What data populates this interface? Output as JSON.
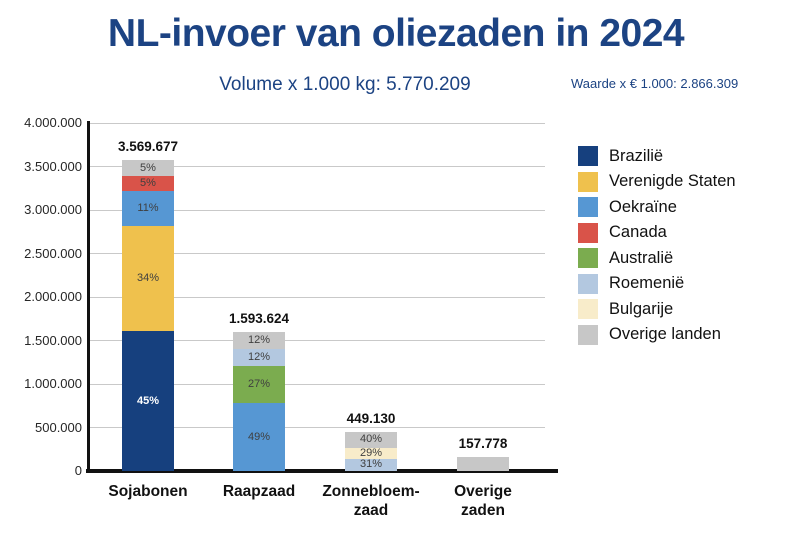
{
  "header": {
    "title": "NL-invoer van oliezaden in 2024",
    "subtitle": "Volume x 1.000 kg: 5.770.209",
    "note": "Waarde x € 1.000: 2.866.309"
  },
  "colors": {
    "title_blue": "#1C4383",
    "axis": "#111111",
    "gridline": "#C9C9C9",
    "pct_label": "#3F3F3F"
  },
  "chart_data": {
    "type": "bar",
    "stacked": true,
    "title": "NL-invoer van oliezaden in 2024",
    "subtitle": "Volume x 1.000 kg: 5.770.209",
    "note": "Waarde x € 1.000: 2.866.309",
    "xlabel": "",
    "ylabel": "",
    "grid": true,
    "legend_position": "right",
    "ylim": [
      0,
      4000000
    ],
    "ytick_step": 500000,
    "yticks_values": [
      0,
      500000,
      1000000,
      1500000,
      2000000,
      2500000,
      3000000,
      3500000,
      4000000
    ],
    "yticks_labels": [
      "0",
      "500.000",
      "1.000.000",
      "1.500.000",
      "2.000.000",
      "2.500.000",
      "3.000.000",
      "3.500.000",
      "4.000.000"
    ],
    "categories": [
      "Sojabonen",
      "Raapzaad",
      "Zonnebloem-\nzaad",
      "Overige\nzaden"
    ],
    "totals_labels": [
      "3.569.677",
      "1.593.624",
      "449.130",
      "157.778"
    ],
    "totals_values": [
      3569677,
      1593624,
      449130,
      157778
    ],
    "legend": [
      {
        "name": "Brazilië",
        "color": "#16407E"
      },
      {
        "name": "Verenigde Staten",
        "color": "#EFC14D"
      },
      {
        "name": "Oekraïne",
        "color": "#5697D3"
      },
      {
        "name": "Canada",
        "color": "#D95349"
      },
      {
        "name": "Australië",
        "color": "#7BAC4F"
      },
      {
        "name": "Roemenië",
        "color": "#B3C8E0"
      },
      {
        "name": "Bulgarije",
        "color": "#F8ECCA"
      },
      {
        "name": "Overige landen",
        "color": "#C7C7C7"
      }
    ],
    "stacks": [
      {
        "category": "Sojabonen",
        "segments": [
          {
            "series": "Brazilië",
            "pct": 45,
            "label": "45%",
            "label_color": "#FFFFFF",
            "bold": true
          },
          {
            "series": "Verenigde Staten",
            "pct": 34,
            "label": "34%"
          },
          {
            "series": "Oekraïne",
            "pct": 11,
            "label": "11%"
          },
          {
            "series": "Canada",
            "pct": 5,
            "label": "5%"
          },
          {
            "series": "Overige landen",
            "pct": 5,
            "label": "5%"
          }
        ]
      },
      {
        "category": "Raapzaad",
        "segments": [
          {
            "series": "Oekraïne",
            "pct": 49,
            "label": "49%"
          },
          {
            "series": "Australië",
            "pct": 27,
            "label": "27%"
          },
          {
            "series": "Roemenië",
            "pct": 12,
            "label": "12%"
          },
          {
            "series": "Overige landen",
            "pct": 12,
            "label": "12%"
          }
        ]
      },
      {
        "category": "Zonnebloem-\nzaad",
        "segments": [
          {
            "series": "Roemenië",
            "pct": 31,
            "label": "31%"
          },
          {
            "series": "Bulgarije",
            "pct": 29,
            "label": "29%"
          },
          {
            "series": "Overige landen",
            "pct": 40,
            "label": "40%"
          }
        ]
      },
      {
        "category": "Overige\nzaden",
        "segments": [
          {
            "series": "Overige landen",
            "pct": 100,
            "label": ""
          }
        ]
      }
    ]
  }
}
